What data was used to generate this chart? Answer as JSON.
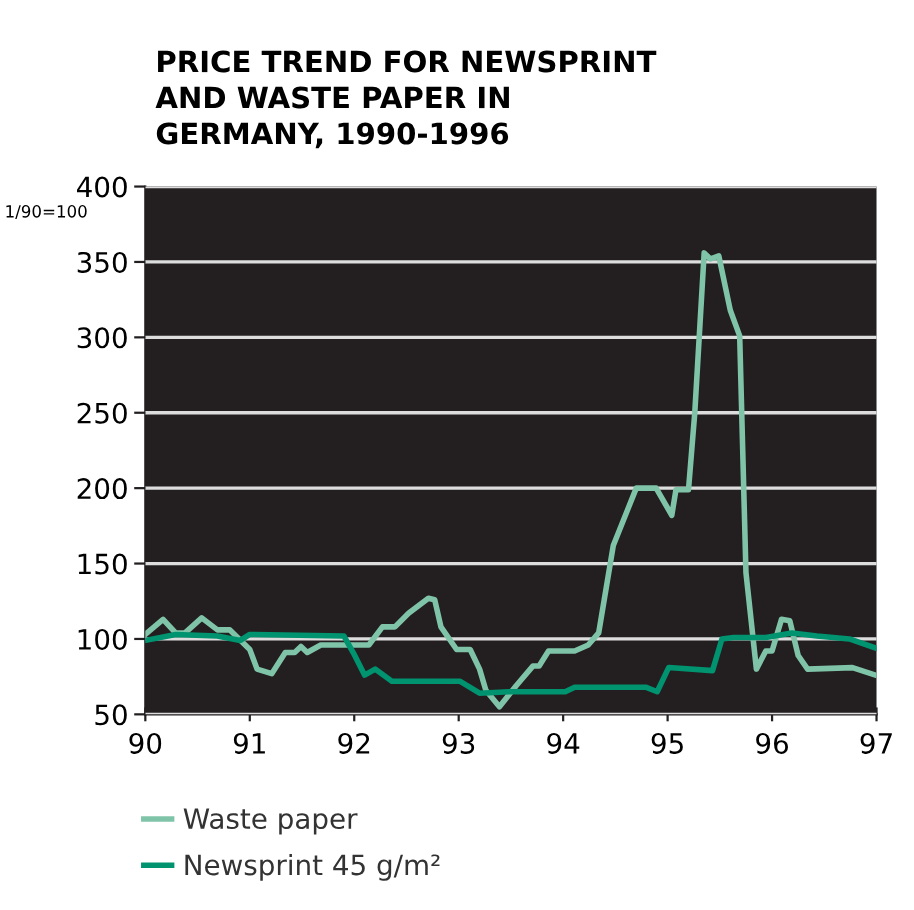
{
  "chart_data": {
    "type": "line",
    "title": "PRICE TREND FOR NEWSPRINT\nAND WASTE PAPER IN\nGERMANY, 1990-1996",
    "ylabel": "1/90=100",
    "series": [
      {
        "name": "Waste paper",
        "color": "#7fc4a8",
        "x": [
          90.0,
          90.17,
          90.29,
          90.38,
          90.54,
          90.69,
          90.81,
          91.0,
          91.07,
          91.21,
          91.34,
          91.43,
          91.49,
          91.55,
          91.68,
          92.14,
          92.27,
          92.39,
          92.52,
          92.71,
          92.77,
          92.83,
          92.98,
          93.11,
          93.2,
          93.26,
          93.39,
          93.55,
          93.71,
          93.77,
          93.86,
          94.11,
          94.24,
          94.34,
          94.48,
          94.7,
          94.89,
          95.04,
          95.08,
          95.2,
          95.26,
          95.35,
          95.41,
          95.49,
          95.6,
          95.69,
          95.75,
          95.85,
          95.94,
          96.0,
          96.09,
          96.17,
          96.25,
          96.34,
          96.77,
          96.99
        ],
        "values": [
          103,
          113,
          104,
          104,
          114,
          106,
          106,
          93,
          80,
          77,
          91,
          91,
          95,
          91,
          96,
          96,
          108,
          108,
          117,
          127,
          126,
          108,
          93,
          93,
          80,
          66,
          55,
          69,
          82,
          82,
          92,
          92,
          96,
          104,
          162,
          200,
          200,
          182,
          199,
          199,
          250,
          356,
          352,
          354,
          318,
          301,
          144,
          80,
          92,
          92,
          113,
          112,
          89,
          80,
          81,
          76
        ]
      },
      {
        "name": "Newsprint 45 g/m²",
        "color": "#00936f",
        "x": [
          90.0,
          90.29,
          90.69,
          90.91,
          91.0,
          91.9,
          91.99,
          92.1,
          92.2,
          92.36,
          93.01,
          93.2,
          93.48,
          94.02,
          94.11,
          94.79,
          94.9,
          95.01,
          95.43,
          95.52,
          95.63,
          95.94,
          96.19,
          96.43,
          96.74,
          96.99
        ],
        "values": [
          99,
          103,
          102,
          99,
          103,
          102,
          91,
          76,
          80,
          72,
          72,
          64,
          65,
          65,
          68,
          68,
          65,
          81,
          79,
          100,
          101,
          101,
          104,
          102,
          100,
          94
        ]
      }
    ],
    "xlim": [
      90,
      97
    ],
    "xticks": [
      90,
      91,
      92,
      93,
      94,
      95,
      96,
      97
    ],
    "ylim": [
      50,
      400
    ],
    "yticks": [
      50,
      100,
      150,
      200,
      250,
      300,
      350,
      400
    ],
    "grid": "y",
    "legend": "bottom",
    "marker": "none",
    "line_style": "solid"
  }
}
